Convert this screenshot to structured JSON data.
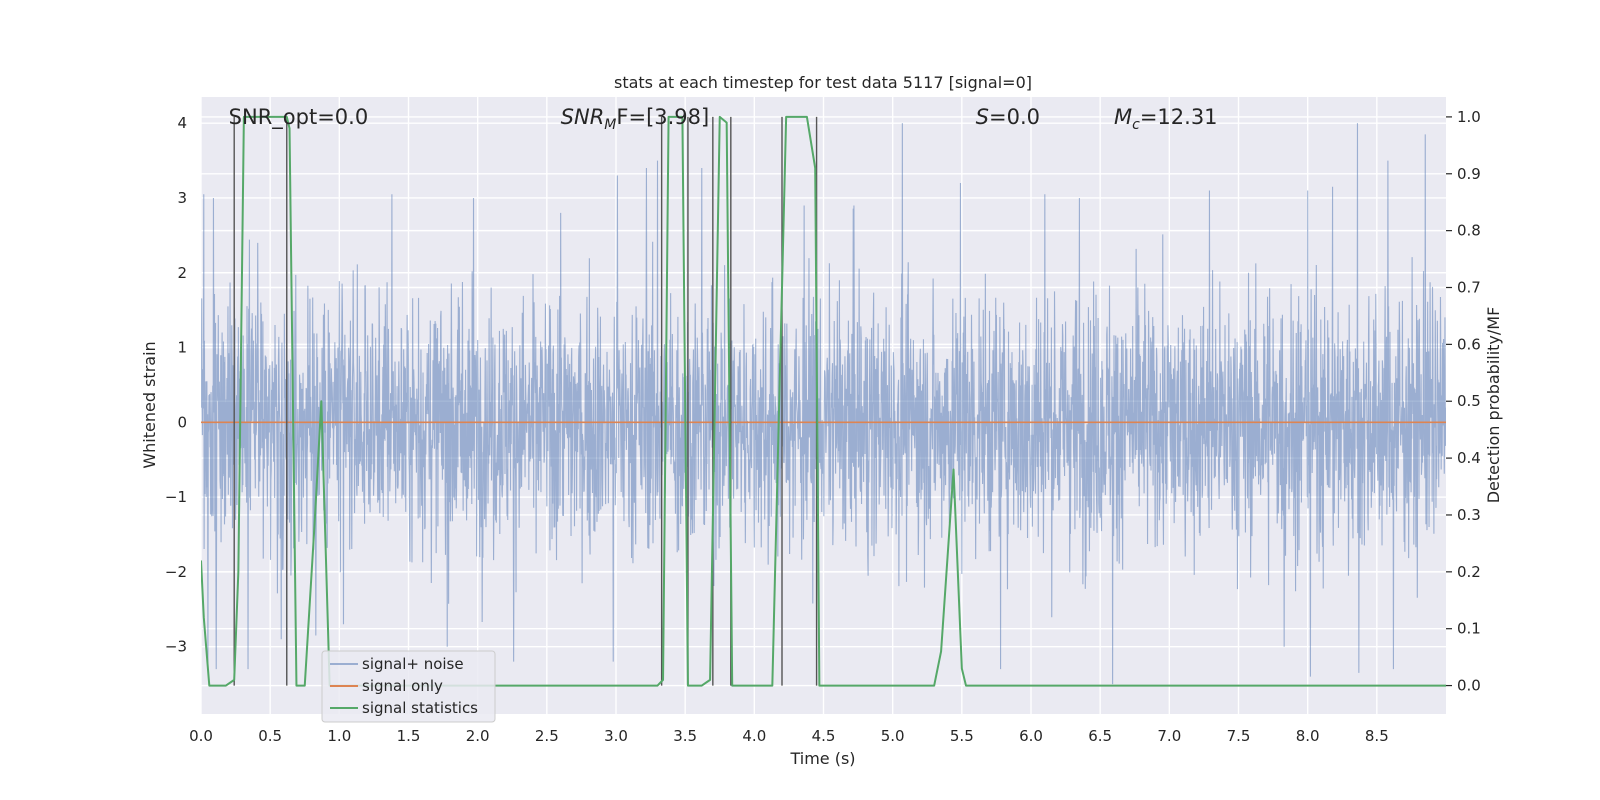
{
  "chart_data": {
    "type": "line",
    "title": "stats at each timestep for test data 5117 [signal=0]",
    "xlabel": "Time (s)",
    "ylabel_left": "Whitened strain",
    "ylabel_right": "Detection probability/MF",
    "xlim": [
      0.0,
      9.0
    ],
    "ylim_left": [
      -3.9,
      4.35
    ],
    "ylim_right": [
      -0.05,
      1.035
    ],
    "x_ticks": [
      0.0,
      0.5,
      1.0,
      1.5,
      2.0,
      2.5,
      3.0,
      3.5,
      4.0,
      4.5,
      5.0,
      5.5,
      6.0,
      6.5,
      7.0,
      7.5,
      8.0,
      8.5
    ],
    "x_tick_labels": [
      "0.0",
      "0.5",
      "1.0",
      "1.5",
      "2.0",
      "2.5",
      "3.0",
      "3.5",
      "4.0",
      "4.5",
      "5.0",
      "5.5",
      "6.0",
      "6.5",
      "7.0",
      "7.5",
      "8.0",
      "8.5"
    ],
    "y_left_ticks": [
      4,
      3,
      2,
      1,
      0,
      -1,
      -2,
      -3
    ],
    "y_left_tick_labels": [
      "4",
      "3",
      "2",
      "1",
      "0",
      "−1",
      "−2",
      "−3"
    ],
    "y_right_ticks": [
      1.0,
      0.9,
      0.8,
      0.7,
      0.6,
      0.5,
      0.4,
      0.3,
      0.2,
      0.1,
      0.0
    ],
    "y_right_tick_labels": [
      "1.0",
      "0.9",
      "0.8",
      "0.7",
      "0.6",
      "0.5",
      "0.4",
      "0.3",
      "0.2",
      "0.1",
      "0.0"
    ],
    "grid": true,
    "legend_position": "lower-left",
    "annotations": [
      {
        "text": "SNR_opt=0.0",
        "x": 0.2,
        "style": "normal"
      },
      {
        "text": "SNR",
        "sub": "M",
        "text2": "F=[3.98]",
        "x": 2.6,
        "style": "italic"
      },
      {
        "text": "S",
        "text2": "=0.0",
        "x": 5.6,
        "style": "italic"
      },
      {
        "text": "M",
        "sub": "c",
        "text2": "=12.31",
        "x": 6.6,
        "style": "italic"
      }
    ],
    "series": [
      {
        "name": "signal+ noise",
        "color": "#4c72b0",
        "axis": "left",
        "kind": "noise",
        "envelope_typical": 1.75,
        "spikes": [
          {
            "x": 0.02,
            "y": 3.05
          },
          {
            "x": 0.05,
            "y": -3.3
          },
          {
            "x": 0.09,
            "y": 3.0
          },
          {
            "x": 0.11,
            "y": -3.3
          },
          {
            "x": 0.34,
            "y": -3.3
          },
          {
            "x": 0.41,
            "y": 2.4
          },
          {
            "x": 0.58,
            "y": -2.9
          },
          {
            "x": 0.62,
            "y": -3.5
          },
          {
            "x": 0.83,
            "y": -2.85
          },
          {
            "x": 1.03,
            "y": -2.7
          },
          {
            "x": 1.38,
            "y": 3.05
          },
          {
            "x": 1.78,
            "y": -3.0
          },
          {
            "x": 1.97,
            "y": 3.0
          },
          {
            "x": 2.26,
            "y": -3.2
          },
          {
            "x": 2.6,
            "y": 2.8
          },
          {
            "x": 2.98,
            "y": -3.2
          },
          {
            "x": 3.01,
            "y": 3.3
          },
          {
            "x": 3.22,
            "y": 3.4
          },
          {
            "x": 3.3,
            "y": 3.5
          },
          {
            "x": 3.62,
            "y": 3.4
          },
          {
            "x": 4.36,
            "y": 2.9
          },
          {
            "x": 4.72,
            "y": 2.9
          },
          {
            "x": 5.07,
            "y": 4.0
          },
          {
            "x": 5.49,
            "y": 3.2
          },
          {
            "x": 5.78,
            "y": -3.3
          },
          {
            "x": 6.1,
            "y": 3.05
          },
          {
            "x": 6.35,
            "y": 3.0
          },
          {
            "x": 6.59,
            "y": -3.5
          },
          {
            "x": 7.29,
            "y": 3.1
          },
          {
            "x": 7.83,
            "y": -3.0
          },
          {
            "x": 8.0,
            "y": 3.1
          },
          {
            "x": 8.02,
            "y": -3.4
          },
          {
            "x": 8.18,
            "y": 3.15
          },
          {
            "x": 8.36,
            "y": 4.0
          },
          {
            "x": 8.37,
            "y": -3.35
          },
          {
            "x": 8.58,
            "y": 3.5
          },
          {
            "x": 8.62,
            "y": -3.3
          },
          {
            "x": 8.85,
            "y": 3.85
          }
        ]
      },
      {
        "name": "signal only",
        "color": "#dd8452",
        "axis": "left",
        "x": [
          0.0,
          9.0
        ],
        "y": [
          0.0,
          0.0
        ]
      },
      {
        "name": "signal statistics",
        "color": "#55a868",
        "axis": "right",
        "x": [
          0.0,
          0.02,
          0.06,
          0.18,
          0.24,
          0.27,
          0.31,
          0.62,
          0.64,
          0.69,
          0.75,
          0.82,
          0.87,
          0.93,
          1.0,
          3.3,
          3.34,
          3.38,
          3.48,
          3.52,
          3.55,
          3.62,
          3.68,
          3.75,
          3.8,
          3.84,
          3.9,
          4.13,
          4.23,
          4.27,
          4.38,
          4.44,
          4.47,
          4.52,
          5.3,
          5.35,
          5.44,
          5.5,
          5.53,
          5.6,
          9.0
        ],
        "y": [
          0.22,
          0.12,
          0.0,
          0.0,
          0.01,
          0.2,
          1.0,
          1.0,
          0.98,
          0.0,
          0.0,
          0.28,
          0.5,
          0.0,
          0.0,
          0.0,
          0.01,
          1.0,
          1.0,
          0.0,
          0.0,
          0.0,
          0.01,
          1.0,
          0.99,
          0.0,
          0.0,
          0.0,
          1.0,
          1.0,
          1.0,
          0.91,
          0.0,
          0.0,
          0.0,
          0.06,
          0.38,
          0.03,
          0.0,
          0.0,
          0.0
        ]
      }
    ],
    "threshold_lines": [
      0.24,
      0.62,
      3.33,
      3.52,
      3.7,
      3.83,
      4.2,
      4.45
    ]
  }
}
